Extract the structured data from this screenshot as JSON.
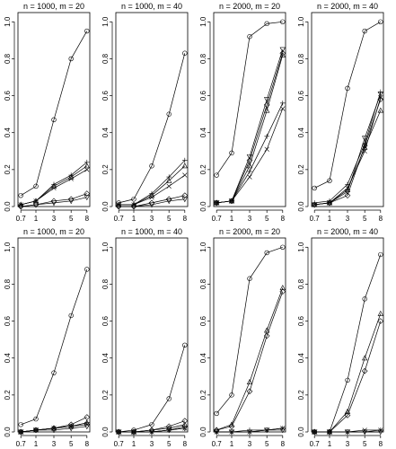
{
  "chart_data": [
    {
      "type": "line",
      "title": "n = 1000, m = 20",
      "x": [
        "0.7",
        "1",
        "3",
        "5",
        "8"
      ],
      "ylim": [
        0,
        1.05
      ],
      "yticks": [
        "0.0",
        "0.2",
        "0.4",
        "0.6",
        "0.8",
        "1.0"
      ],
      "series": [
        {
          "marker": "circle",
          "values": [
            0.06,
            0.11,
            0.47,
            0.8,
            0.95
          ]
        },
        {
          "marker": "plus",
          "values": [
            0.01,
            0.03,
            0.12,
            0.17,
            0.24
          ]
        },
        {
          "marker": "cross",
          "values": [
            0.01,
            0.03,
            0.1,
            0.15,
            0.2
          ]
        },
        {
          "marker": "triangle",
          "values": [
            0.01,
            0.03,
            0.11,
            0.16,
            0.22
          ]
        },
        {
          "marker": "diamond",
          "values": [
            0.0,
            0.01,
            0.03,
            0.04,
            0.07
          ]
        },
        {
          "marker": "inv-triangle",
          "values": [
            0.0,
            0.01,
            0.02,
            0.03,
            0.05
          ]
        }
      ]
    },
    {
      "type": "line",
      "title": "n = 1000, m = 40",
      "x": [
        "0.7",
        "1",
        "3",
        "5",
        "8"
      ],
      "ylim": [
        0,
        1.05
      ],
      "yticks": [
        "0.0",
        "0.2",
        "0.4",
        "0.6",
        "0.8",
        "1.0"
      ],
      "series": [
        {
          "marker": "circle",
          "values": [
            0.02,
            0.04,
            0.22,
            0.5,
            0.83
          ]
        },
        {
          "marker": "plus",
          "values": [
            0.01,
            0.01,
            0.07,
            0.16,
            0.25
          ]
        },
        {
          "marker": "cross",
          "values": [
            0.01,
            0.01,
            0.05,
            0.11,
            0.17
          ]
        },
        {
          "marker": "triangle",
          "values": [
            0.01,
            0.01,
            0.06,
            0.14,
            0.22
          ]
        },
        {
          "marker": "diamond",
          "values": [
            0.0,
            0.0,
            0.02,
            0.04,
            0.06
          ]
        },
        {
          "marker": "inv-triangle",
          "values": [
            0.0,
            0.0,
            0.01,
            0.03,
            0.04
          ]
        }
      ]
    },
    {
      "type": "line",
      "title": "n = 2000, m = 20",
      "x": [
        "0.7",
        "1",
        "3",
        "5",
        "8"
      ],
      "ylim": [
        0,
        1.05
      ],
      "yticks": [
        "0.0",
        "0.2",
        "0.4",
        "0.6",
        "0.8",
        "1.0"
      ],
      "series": [
        {
          "marker": "circle",
          "values": [
            0.17,
            0.29,
            0.92,
            0.99,
            1.0
          ]
        },
        {
          "marker": "plus",
          "values": [
            0.02,
            0.03,
            0.19,
            0.38,
            0.56
          ]
        },
        {
          "marker": "cross",
          "values": [
            0.02,
            0.03,
            0.16,
            0.31,
            0.53
          ]
        },
        {
          "marker": "triangle",
          "values": [
            0.02,
            0.03,
            0.22,
            0.52,
            0.82
          ]
        },
        {
          "marker": "diamond",
          "values": [
            0.02,
            0.03,
            0.25,
            0.55,
            0.83
          ]
        },
        {
          "marker": "inv-triangle",
          "values": [
            0.02,
            0.03,
            0.27,
            0.58,
            0.85
          ]
        }
      ]
    },
    {
      "type": "line",
      "title": "n = 2000, m = 40",
      "x": [
        "0.7",
        "1",
        "3",
        "5",
        "8"
      ],
      "ylim": [
        0,
        1.05
      ],
      "yticks": [
        "0.0",
        "0.2",
        "0.4",
        "0.6",
        "0.8",
        "1.0"
      ],
      "series": [
        {
          "marker": "circle",
          "values": [
            0.1,
            0.14,
            0.64,
            0.95,
            1.0
          ]
        },
        {
          "marker": "plus",
          "values": [
            0.02,
            0.03,
            0.12,
            0.34,
            0.62
          ]
        },
        {
          "marker": "cross",
          "values": [
            0.01,
            0.02,
            0.1,
            0.3,
            0.59
          ]
        },
        {
          "marker": "triangle",
          "values": [
            0.01,
            0.02,
            0.09,
            0.32,
            0.52
          ]
        },
        {
          "marker": "diamond",
          "values": [
            0.01,
            0.02,
            0.06,
            0.33,
            0.58
          ]
        },
        {
          "marker": "inv-triangle",
          "values": [
            0.01,
            0.02,
            0.08,
            0.37,
            0.61
          ]
        }
      ]
    },
    {
      "type": "line",
      "title": "n = 1000, m = 20",
      "x": [
        "0.7",
        "1",
        "3",
        "5",
        "8"
      ],
      "ylim": [
        0,
        1.05
      ],
      "yticks": [
        "0.0",
        "0.2",
        "0.4",
        "0.6",
        "0.8",
        "1.0"
      ],
      "series": [
        {
          "marker": "circle",
          "values": [
            0.04,
            0.07,
            0.32,
            0.63,
            0.88
          ]
        },
        {
          "marker": "plus",
          "values": [
            0.0,
            0.01,
            0.02,
            0.03,
            0.05
          ]
        },
        {
          "marker": "cross",
          "values": [
            0.0,
            0.01,
            0.02,
            0.03,
            0.04
          ]
        },
        {
          "marker": "triangle",
          "values": [
            0.0,
            0.01,
            0.02,
            0.03,
            0.05
          ]
        },
        {
          "marker": "diamond",
          "values": [
            0.0,
            0.01,
            0.02,
            0.04,
            0.08
          ]
        },
        {
          "marker": "inv-triangle",
          "values": [
            0.0,
            0.01,
            0.01,
            0.02,
            0.03
          ]
        }
      ]
    },
    {
      "type": "line",
      "title": "n = 1000, m = 40",
      "x": [
        "0.7",
        "1",
        "3",
        "5",
        "8"
      ],
      "ylim": [
        0,
        1.05
      ],
      "yticks": [
        "0.0",
        "0.2",
        "0.4",
        "0.6",
        "0.8",
        "1.0"
      ],
      "series": [
        {
          "marker": "circle",
          "values": [
            0.0,
            0.01,
            0.04,
            0.18,
            0.47
          ]
        },
        {
          "marker": "plus",
          "values": [
            0.0,
            0.0,
            0.0,
            0.01,
            0.03
          ]
        },
        {
          "marker": "cross",
          "values": [
            0.0,
            0.0,
            0.0,
            0.01,
            0.02
          ]
        },
        {
          "marker": "triangle",
          "values": [
            0.0,
            0.0,
            0.01,
            0.02,
            0.04
          ]
        },
        {
          "marker": "diamond",
          "values": [
            0.0,
            0.0,
            0.01,
            0.03,
            0.06
          ]
        },
        {
          "marker": "inv-triangle",
          "values": [
            0.0,
            0.0,
            0.0,
            0.01,
            0.02
          ]
        }
      ]
    },
    {
      "type": "line",
      "title": "n = 2000, m = 20",
      "x": [
        "0.7",
        "1",
        "3",
        "5",
        "8"
      ],
      "ylim": [
        0,
        1.05
      ],
      "yticks": [
        "0.0",
        "0.2",
        "0.4",
        "0.6",
        "0.8",
        "1.0"
      ],
      "series": [
        {
          "marker": "circle",
          "values": [
            0.1,
            0.2,
            0.83,
            0.97,
            1.0
          ]
        },
        {
          "marker": "plus",
          "values": [
            0.0,
            0.0,
            0.01,
            0.01,
            0.02
          ]
        },
        {
          "marker": "cross",
          "values": [
            0.0,
            0.0,
            0.0,
            0.01,
            0.02
          ]
        },
        {
          "marker": "triangle",
          "values": [
            0.01,
            0.04,
            0.27,
            0.55,
            0.78
          ]
        },
        {
          "marker": "diamond",
          "values": [
            0.01,
            0.03,
            0.22,
            0.52,
            0.76
          ]
        },
        {
          "marker": "inv-triangle",
          "values": [
            0.0,
            0.0,
            0.0,
            0.01,
            0.01
          ]
        }
      ]
    },
    {
      "type": "line",
      "title": "n = 2000, m = 40",
      "x": [
        "0.7",
        "1",
        "3",
        "5",
        "8"
      ],
      "ylim": [
        0,
        1.05
      ],
      "yticks": [
        "0.0",
        "0.2",
        "0.4",
        "0.6",
        "0.8",
        "1.0"
      ],
      "series": [
        {
          "marker": "circle",
          "values": [
            0.0,
            0.0,
            0.28,
            0.72,
            0.96
          ]
        },
        {
          "marker": "plus",
          "values": [
            0.0,
            0.0,
            0.0,
            0.0,
            0.01
          ]
        },
        {
          "marker": "cross",
          "values": [
            0.0,
            0.0,
            0.0,
            0.01,
            0.01
          ]
        },
        {
          "marker": "triangle",
          "values": [
            0.0,
            0.0,
            0.11,
            0.4,
            0.64
          ]
        },
        {
          "marker": "diamond",
          "values": [
            0.0,
            0.0,
            0.09,
            0.33,
            0.6
          ]
        },
        {
          "marker": "inv-triangle",
          "values": [
            0.0,
            0.0,
            0.0,
            0.0,
            0.0
          ]
        }
      ]
    }
  ]
}
